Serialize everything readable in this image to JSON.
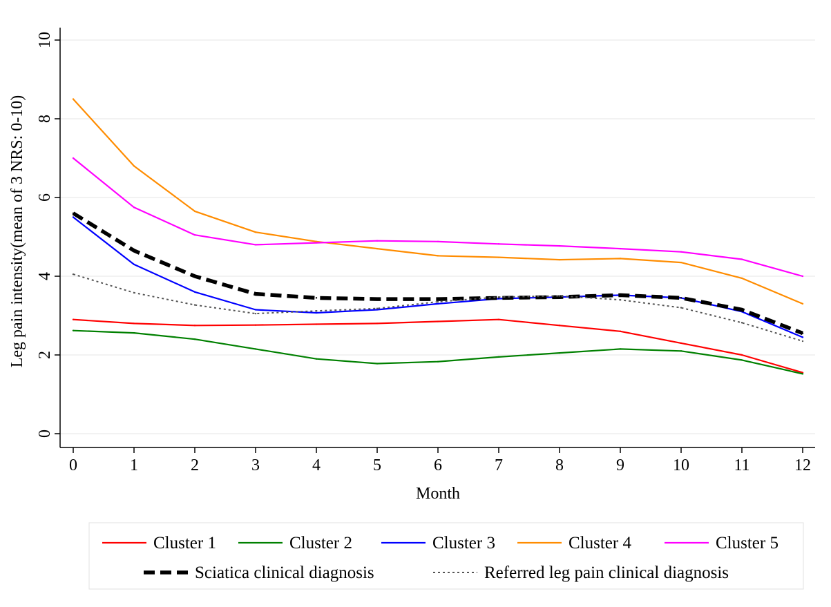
{
  "chart_data": {
    "type": "line",
    "title": "",
    "xlabel": "Month",
    "ylabel": "Leg pain intensity(mean of 3 NRS: 0-10)",
    "xlim": [
      0,
      12
    ],
    "ylim": [
      0,
      10
    ],
    "x_ticks": [
      0,
      1,
      2,
      3,
      4,
      5,
      6,
      7,
      8,
      9,
      10,
      11,
      12
    ],
    "y_ticks": [
      0,
      2,
      4,
      6,
      8,
      10
    ],
    "grid": true,
    "legend_position": "bottom",
    "series": [
      {
        "name": "Cluster 1",
        "color": "#ff0000",
        "style": "solid",
        "x": [
          0,
          1,
          2,
          3,
          4,
          5,
          6,
          7,
          8,
          9,
          10,
          11,
          12
        ],
        "y": [
          2.9,
          2.8,
          2.75,
          2.76,
          2.78,
          2.8,
          2.85,
          2.9,
          2.75,
          2.6,
          2.3,
          2.0,
          1.55
        ]
      },
      {
        "name": "Cluster 2",
        "color": "#008000",
        "style": "solid",
        "x": [
          0,
          1,
          2,
          3,
          4,
          5,
          6,
          7,
          8,
          9,
          10,
          11,
          12
        ],
        "y": [
          2.62,
          2.56,
          2.4,
          2.15,
          1.9,
          1.78,
          1.83,
          1.95,
          2.05,
          2.15,
          2.1,
          1.87,
          1.52
        ]
      },
      {
        "name": "Cluster 3",
        "color": "#0000ff",
        "style": "solid",
        "x": [
          0,
          1,
          2,
          3,
          4,
          5,
          6,
          7,
          8,
          9,
          10,
          11,
          12
        ],
        "y": [
          5.5,
          4.3,
          3.6,
          3.15,
          3.07,
          3.15,
          3.3,
          3.43,
          3.47,
          3.52,
          3.45,
          3.1,
          2.45
        ]
      },
      {
        "name": "Cluster 4",
        "color": "#ff8c00",
        "style": "solid",
        "x": [
          0,
          1,
          2,
          3,
          4,
          5,
          6,
          7,
          8,
          9,
          10,
          11,
          12
        ],
        "y": [
          8.5,
          6.8,
          5.65,
          5.12,
          4.88,
          4.7,
          4.52,
          4.48,
          4.42,
          4.45,
          4.35,
          3.95,
          3.3
        ]
      },
      {
        "name": "Cluster 5",
        "color": "#ff00ff",
        "style": "solid",
        "x": [
          0,
          1,
          2,
          3,
          4,
          5,
          6,
          7,
          8,
          9,
          10,
          11,
          12
        ],
        "y": [
          7.0,
          5.75,
          5.05,
          4.8,
          4.85,
          4.9,
          4.88,
          4.82,
          4.77,
          4.7,
          4.62,
          4.43,
          4.0
        ]
      },
      {
        "name": "Sciatica clinical diagnosis",
        "color": "#000000",
        "style": "dashed",
        "x": [
          0,
          1,
          2,
          3,
          4,
          5,
          6,
          7,
          8,
          9,
          10,
          11,
          12
        ],
        "y": [
          5.6,
          4.65,
          4.0,
          3.55,
          3.45,
          3.42,
          3.42,
          3.45,
          3.47,
          3.52,
          3.45,
          3.15,
          2.55
        ]
      },
      {
        "name": "Referred leg pain clinical diagnosis",
        "color": "#555555",
        "style": "dotted",
        "x": [
          0,
          1,
          2,
          3,
          4,
          5,
          6,
          7,
          8,
          9,
          10,
          11,
          12
        ],
        "y": [
          4.05,
          3.58,
          3.27,
          3.05,
          3.12,
          3.18,
          3.35,
          3.47,
          3.5,
          3.4,
          3.2,
          2.82,
          2.35
        ]
      }
    ]
  }
}
